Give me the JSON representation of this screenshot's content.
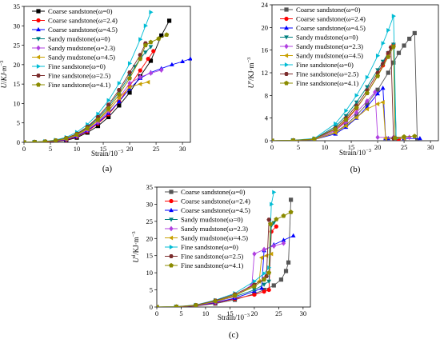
{
  "chart_data": [
    {
      "panel_label": "(a)",
      "type": "line",
      "xlabel": "Strain/10",
      "xlabel_exp": "−3",
      "ylabel": "U/KJ·m",
      "ylabel_exp": "−3",
      "xlim": [
        0,
        31.5
      ],
      "ylim": [
        0,
        35
      ],
      "xticks": [
        0,
        5,
        10,
        15,
        20,
        25,
        30
      ],
      "yticks": [
        0,
        5,
        10,
        15,
        20,
        25,
        30,
        35
      ],
      "legend_position": "top-left",
      "series": [
        {
          "name": "Coarse sandstone(ω=0)",
          "color": "#000000",
          "marker": "square",
          "x": [
            0,
            2,
            4,
            6,
            8,
            10,
            12,
            14,
            16,
            18,
            20,
            22,
            24,
            26,
            27.5
          ],
          "y": [
            0,
            0.05,
            0.1,
            0.2,
            0.5,
            1.2,
            2.5,
            4.2,
            6.5,
            9.5,
            12.8,
            17,
            21,
            27.5,
            31.3
          ]
        },
        {
          "name": "Coarse sandstone(ω=2.4)",
          "color": "#ff0000",
          "marker": "circle",
          "x": [
            0,
            2,
            4,
            6,
            8,
            10,
            12,
            14,
            16,
            18,
            20,
            22,
            23.5,
            24.5
          ],
          "y": [
            0,
            0.05,
            0.1,
            0.25,
            0.6,
            1.4,
            2.8,
            4.8,
            7.2,
            10.5,
            14.5,
            18.5,
            21.5,
            23.5
          ]
        },
        {
          "name": "Coarse sandstone(ω=4.5)",
          "color": "#0000ff",
          "marker": "triangle-up",
          "x": [
            0,
            2,
            4,
            6,
            8,
            10,
            12,
            14,
            16,
            18,
            20,
            22,
            24,
            26,
            28,
            30,
            31.5
          ],
          "y": [
            0,
            0.05,
            0.15,
            0.3,
            0.7,
            1.5,
            3,
            5,
            7.5,
            10.5,
            13.8,
            16.5,
            18,
            19,
            20,
            20.8,
            21.5
          ]
        },
        {
          "name": "Sandy mudstone(ω=0)",
          "color": "#008080",
          "marker": "triangle-down",
          "x": [
            0,
            2,
            4,
            6,
            8,
            10,
            12,
            14,
            16,
            18,
            20,
            21,
            22,
            23,
            24
          ],
          "y": [
            0,
            0.08,
            0.2,
            0.45,
            1,
            2,
            3.8,
            6.2,
            9.2,
            13,
            17.2,
            19.5,
            21.5,
            23.2,
            24.6
          ]
        },
        {
          "name": "Sandy mudstone(ω=2.3)",
          "color": "#b040e0",
          "marker": "diamond",
          "x": [
            0,
            2,
            4,
            6,
            8,
            10,
            12,
            14,
            16,
            18,
            20,
            22,
            24,
            26
          ],
          "y": [
            0,
            0.06,
            0.15,
            0.35,
            0.8,
            1.7,
            3.2,
            5.2,
            8,
            11.5,
            15.2,
            16.8,
            17.8,
            18.6
          ]
        },
        {
          "name": "Sandy mudstone(ω=4.5)",
          "color": "#c8a000",
          "marker": "triangle-left",
          "x": [
            0,
            2,
            4,
            6,
            8,
            10,
            12,
            14,
            16,
            18,
            20,
            22,
            23.5
          ],
          "y": [
            0,
            0.06,
            0.15,
            0.4,
            0.9,
            1.8,
            3.4,
            5.6,
            8.3,
            11.4,
            14.2,
            15,
            15.5
          ]
        },
        {
          "name": "Fine sandstone(ω=0)",
          "color": "#00bcd4",
          "marker": "triangle-right",
          "x": [
            0,
            2,
            4,
            6,
            8,
            10,
            12,
            14,
            16,
            18,
            20,
            22,
            23,
            24
          ],
          "y": [
            0,
            0.1,
            0.25,
            0.6,
            1.3,
            2.6,
            4.6,
            7.3,
            10.8,
            15.2,
            20.3,
            26.5,
            30,
            33.5
          ]
        },
        {
          "name": "Fine sandstone(ω=2.5)",
          "color": "#7b2c2c",
          "marker": "hexagon",
          "x": [
            0,
            2,
            4,
            6,
            8,
            10,
            12,
            14,
            16,
            18,
            20,
            22,
            23
          ],
          "y": [
            0,
            0.08,
            0.2,
            0.5,
            1.1,
            2.2,
            4,
            6.5,
            9.7,
            13.5,
            18,
            22.5,
            25.5
          ]
        },
        {
          "name": "Fine sandstone(ω=4.1)",
          "color": "#8b8b00",
          "marker": "pentagon",
          "x": [
            0,
            2,
            4,
            6,
            8,
            10,
            12,
            14,
            16,
            18,
            20,
            22,
            23,
            24,
            25.5,
            27
          ],
          "y": [
            0,
            0.07,
            0.18,
            0.45,
            1,
            2,
            3.6,
            5.8,
            8.7,
            12.3,
            16.5,
            21.5,
            25,
            25.8,
            26.7,
            27.7
          ]
        }
      ]
    },
    {
      "panel_label": "(b)",
      "type": "line",
      "xlabel": "Strain/10",
      "xlabel_exp": "−3",
      "ylabel": "U",
      "ylabel_sup": "e",
      "ylabel_rest": "/KJ·m",
      "ylabel_exp": "−3",
      "xlim": [
        0,
        31.5
      ],
      "ylim": [
        0,
        24
      ],
      "xticks": [
        0,
        5,
        10,
        15,
        20,
        25,
        30
      ],
      "yticks": [
        0,
        4,
        8,
        12,
        16,
        20,
        24
      ],
      "legend_position": "top-left",
      "series": [
        {
          "name": "Coarse sandstone(ω=0)",
          "color": "#555555",
          "marker": "square",
          "x": [
            0,
            4,
            8,
            12,
            14,
            16,
            18,
            20,
            22,
            23,
            24,
            25,
            26,
            27,
            27.5
          ],
          "y": [
            0,
            0.05,
            0.2,
            1.5,
            2.8,
            4.5,
            6.5,
            9,
            12,
            13.8,
            15.5,
            16.8,
            18,
            19,
            0
          ]
        },
        {
          "name": "Coarse sandstone(ω=2.4)",
          "color": "#ff0000",
          "marker": "circle",
          "x": [
            0,
            4,
            8,
            12,
            14,
            16,
            18,
            20,
            21,
            22,
            23,
            23.5,
            24
          ],
          "y": [
            0,
            0.05,
            0.25,
            1.8,
            3.5,
            5.7,
            8.4,
            11.5,
            13.3,
            15.2,
            17,
            0.3,
            0.3
          ]
        },
        {
          "name": "Coarse sandstone(ω=4.5)",
          "color": "#0000ff",
          "marker": "triangle-up",
          "x": [
            0,
            4,
            8,
            12,
            14,
            16,
            18,
            20,
            21,
            21.5,
            22,
            25,
            28
          ],
          "y": [
            0,
            0.05,
            0.2,
            1.2,
            2.4,
            4,
            6,
            8.3,
            9.3,
            0.4,
            0.4,
            0.4,
            0.4
          ]
        },
        {
          "name": "Sandy mudstone(ω=0)",
          "color": "#008080",
          "marker": "triangle-down",
          "x": [
            0,
            4,
            8,
            12,
            14,
            16,
            18,
            20,
            21,
            22,
            23,
            23.5
          ],
          "y": [
            0,
            0.06,
            0.3,
            2.5,
            4.4,
            6.8,
            9.5,
            12.5,
            14,
            15.5,
            17,
            0.4
          ]
        },
        {
          "name": "Sandy mudstone(ω=2.3)",
          "color": "#b040e0",
          "marker": "diamond",
          "x": [
            0,
            4,
            8,
            12,
            14,
            16,
            18,
            19.5,
            20,
            23,
            26
          ],
          "y": [
            0,
            0.05,
            0.25,
            1.8,
            3.3,
            5,
            7,
            8.6,
            0.6,
            0.6,
            0.6
          ]
        },
        {
          "name": "Sandy mudstone(ω=4.5)",
          "color": "#c8a000",
          "marker": "triangle-left",
          "x": [
            0,
            4,
            8,
            12,
            14,
            16,
            18,
            20,
            21,
            21.5,
            23,
            25
          ],
          "y": [
            0,
            0.05,
            0.2,
            1.4,
            2.6,
            4.1,
            5.6,
            6.5,
            6.8,
            0.4,
            0.4,
            0.4
          ]
        },
        {
          "name": "Fine sandstone(ω=0)",
          "color": "#00bcd4",
          "marker": "triangle-right",
          "x": [
            0,
            4,
            8,
            12,
            14,
            16,
            18,
            20,
            21,
            22,
            23,
            23.5
          ],
          "y": [
            0,
            0.08,
            0.4,
            3,
            5.3,
            8,
            11.2,
            15,
            17.2,
            19.5,
            22,
            0.4
          ]
        },
        {
          "name": "Fine sandstone(ω=2.5)",
          "color": "#7b2c2c",
          "marker": "hexagon",
          "x": [
            0,
            4,
            8,
            12,
            14,
            16,
            18,
            20,
            21,
            22,
            22.5,
            23
          ],
          "y": [
            0,
            0.06,
            0.3,
            2.2,
            4,
            6.2,
            8.9,
            12,
            13.6,
            15.5,
            16.5,
            0.4
          ]
        },
        {
          "name": "Fine sandstone(ω=4.1)",
          "color": "#8b8b00",
          "marker": "pentagon",
          "x": [
            0,
            4,
            8,
            12,
            14,
            16,
            18,
            20,
            22,
            23,
            23.3,
            25,
            27
          ],
          "y": [
            0,
            0.06,
            0.3,
            2,
            3.7,
            5.8,
            8.4,
            11.4,
            14.8,
            16.6,
            0.5,
            0.7,
            0.8
          ]
        }
      ]
    },
    {
      "panel_label": "(c)",
      "type": "line",
      "xlabel": "Strain/10",
      "xlabel_exp": "−3",
      "ylabel": "U",
      "ylabel_sup": "d",
      "ylabel_rest": "/KJ·m",
      "ylabel_exp": "−3",
      "xlim": [
        0,
        31.5
      ],
      "ylim": [
        0,
        35
      ],
      "xticks": [
        0,
        5,
        10,
        15,
        20,
        25,
        30
      ],
      "yticks": [
        0,
        5,
        10,
        15,
        20,
        25,
        30,
        35
      ],
      "legend_position": "top-left",
      "series": [
        {
          "name": "Coarse sandstone(ω=0)",
          "color": "#555555",
          "marker": "square",
          "x": [
            0,
            4,
            8,
            12,
            16,
            20,
            22,
            24,
            25.5,
            26.5,
            27,
            27.5
          ],
          "y": [
            0,
            0.05,
            0.3,
            1,
            2.1,
            3.9,
            5,
            6.3,
            8,
            10.5,
            13,
            31.3
          ]
        },
        {
          "name": "Coarse sandstone(ω=2.4)",
          "color": "#ff0000",
          "marker": "circle",
          "x": [
            0,
            4,
            8,
            12,
            16,
            20,
            22,
            23,
            23.5,
            24.5
          ],
          "y": [
            0,
            0.05,
            0.35,
            1.2,
            2.4,
            3.6,
            4.5,
            5,
            22,
            23.5
          ]
        },
        {
          "name": "Coarse sandstone(ω=4.5)",
          "color": "#0000ff",
          "marker": "triangle-up",
          "x": [
            0,
            4,
            8,
            12,
            16,
            20,
            21.5,
            22,
            24,
            26,
            28
          ],
          "y": [
            0,
            0.06,
            0.4,
            1.3,
            2.6,
            4.6,
            5.5,
            16.5,
            18.2,
            19.5,
            20.8
          ]
        },
        {
          "name": "Sandy mudstone(ω=0)",
          "color": "#008080",
          "marker": "triangle-down",
          "x": [
            0,
            4,
            8,
            12,
            16,
            20,
            22,
            23,
            23.5,
            24
          ],
          "y": [
            0,
            0.08,
            0.5,
            1.6,
            3,
            5,
            6.6,
            7.5,
            23.8,
            24.6
          ]
        },
        {
          "name": "Sandy mudstone(ω=2.3)",
          "color": "#b040e0",
          "marker": "diamond",
          "x": [
            0,
            4,
            8,
            12,
            16,
            19.5,
            20,
            22,
            24,
            26
          ],
          "y": [
            0,
            0.07,
            0.45,
            1.5,
            3.1,
            6.5,
            15.5,
            16.8,
            17.8,
            18.6
          ]
        },
        {
          "name": "Sandy mudstone(ω=4.5)",
          "color": "#c8a000",
          "marker": "triangle-left",
          "x": [
            0,
            4,
            8,
            12,
            16,
            20,
            21,
            21.5,
            22.5,
            23.5
          ],
          "y": [
            0,
            0.07,
            0.5,
            1.6,
            3.2,
            6.4,
            7.5,
            14.4,
            15,
            15.5
          ]
        },
        {
          "name": "Fine sandstone(ω=0)",
          "color": "#00bcd4",
          "marker": "triangle-right",
          "x": [
            0,
            4,
            8,
            12,
            16,
            20,
            22,
            23,
            23.5,
            24
          ],
          "y": [
            0,
            0.1,
            0.6,
            2,
            4,
            7.5,
            9.8,
            11.5,
            30,
            33.5
          ]
        },
        {
          "name": "Fine sandstone(ω=2.5)",
          "color": "#7b2c2c",
          "marker": "hexagon",
          "x": [
            0,
            4,
            8,
            12,
            16,
            20,
            22,
            22.5,
            23
          ],
          "y": [
            0,
            0.08,
            0.55,
            1.9,
            3.7,
            6.5,
            8.2,
            9,
            25.5
          ]
        },
        {
          "name": "Fine sandstone(ω=4.1)",
          "color": "#8b8b00",
          "marker": "pentagon",
          "x": [
            0,
            4,
            8,
            12,
            16,
            20,
            22,
            23,
            23.3,
            24.5,
            26,
            27.5
          ],
          "y": [
            0,
            0.08,
            0.5,
            1.7,
            3.4,
            6,
            8,
            10,
            24.2,
            25.6,
            26.6,
            27.7
          ]
        }
      ]
    }
  ]
}
